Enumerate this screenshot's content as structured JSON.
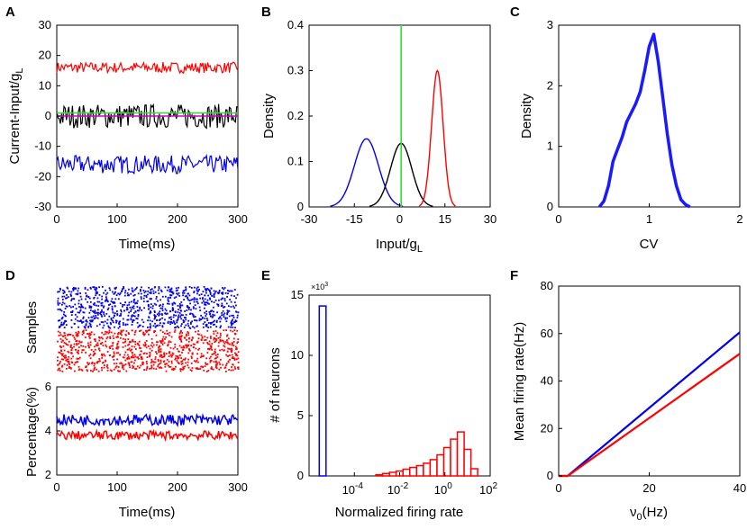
{
  "colors": {
    "red": "#ff0000",
    "blue": "#0000ee",
    "black": "#000000",
    "green": "#33dd33",
    "magenta": "#cc00cc"
  },
  "chart_data": [
    {
      "panel": "A",
      "type": "line",
      "xlabel": "Time(ms)",
      "ylabel_main": "Current-Input/g",
      "ylabel_sub": "L",
      "xlim": [
        0,
        300
      ],
      "ylim": [
        -30,
        30
      ],
      "xticks": [
        "0",
        "100",
        "200",
        "300"
      ],
      "yticks": [
        "-30",
        "-20",
        "-10",
        "0",
        "10",
        "20",
        "30"
      ],
      "series": [
        {
          "name": "red",
          "mean": 16,
          "amplitude": 1.8
        },
        {
          "name": "black",
          "mean": 0,
          "amplitude": 4
        },
        {
          "name": "blue",
          "mean": -16,
          "amplitude": 3
        },
        {
          "name": "green",
          "value": 1
        },
        {
          "name": "magenta",
          "value": 0
        }
      ]
    },
    {
      "panel": "B",
      "type": "line",
      "xlabel_main": "Input/g",
      "xlabel_sub": "L",
      "ylabel": "Density",
      "xlim": [
        -30,
        30
      ],
      "ylim": [
        0,
        0.4
      ],
      "xticks": [
        "-30",
        "-15",
        "0",
        "15",
        "30"
      ],
      "yticks": [
        "0",
        "0.1",
        "0.2",
        "0.3",
        "0.4"
      ],
      "series": [
        {
          "name": "blue",
          "peak_x": -11,
          "peak_y": 0.15
        },
        {
          "name": "black",
          "peak_x": 0.5,
          "peak_y": 0.14
        },
        {
          "name": "red",
          "peak_x": 12.5,
          "peak_y": 0.3
        },
        {
          "name": "green",
          "vline_x": 0.5
        }
      ]
    },
    {
      "panel": "C",
      "type": "line",
      "xlabel": "CV",
      "ylabel": "Density",
      "xlim": [
        0,
        2
      ],
      "ylim": [
        0,
        3
      ],
      "xticks": [
        "0",
        "1",
        "2"
      ],
      "yticks": [
        "0",
        "1",
        "2",
        "3"
      ],
      "x": [
        0.45,
        0.5,
        0.55,
        0.6,
        0.65,
        0.7,
        0.75,
        0.8,
        0.85,
        0.9,
        0.95,
        1.0,
        1.05,
        1.1,
        1.15,
        1.2,
        1.25,
        1.3,
        1.35,
        1.4,
        1.45
      ],
      "y": [
        0,
        0.1,
        0.35,
        0.75,
        0.95,
        1.15,
        1.4,
        1.55,
        1.7,
        1.9,
        2.25,
        2.65,
        2.85,
        2.4,
        1.8,
        1.2,
        0.7,
        0.35,
        0.12,
        0.04,
        0
      ]
    },
    {
      "panel": "D-top",
      "type": "scatter",
      "ylabel": "Samples",
      "series": [
        {
          "name": "blue"
        },
        {
          "name": "red"
        }
      ]
    },
    {
      "panel": "D",
      "type": "line",
      "xlabel": "Time(ms)",
      "ylabel": "Percentage(%)",
      "xlim": [
        0,
        300
      ],
      "ylim": [
        2,
        6
      ],
      "xticks": [
        "0",
        "100",
        "200",
        "300"
      ],
      "yticks": [
        "2",
        "4",
        "6"
      ],
      "series": [
        {
          "name": "blue",
          "mean": 4.5,
          "amplitude": 0.25
        },
        {
          "name": "red",
          "mean": 3.8,
          "amplitude": 0.2
        }
      ]
    },
    {
      "panel": "E",
      "type": "bar",
      "xlabel": "Normalized firing rate",
      "ylabel": "# of neurons",
      "ylim": [
        0,
        15
      ],
      "scale_label": "×10",
      "scale_exp": "3",
      "xticks": [
        {
          "base": "10",
          "exp": "-4"
        },
        {
          "base": "10",
          "exp": "-2"
        },
        {
          "base": "10",
          "exp": "0"
        },
        {
          "base": "10",
          "exp": "2"
        }
      ],
      "yticks": [
        "0",
        "5",
        "10",
        "15"
      ],
      "series": [
        {
          "name": "blue",
          "bins": [
            {
              "x": -5.4,
              "y": 14.1
            }
          ]
        },
        {
          "name": "red",
          "bins": [
            {
              "x": -2.9,
              "y": 0.1
            },
            {
              "x": -2.6,
              "y": 0.2
            },
            {
              "x": -2.3,
              "y": 0.3
            },
            {
              "x": -2.0,
              "y": 0.4
            },
            {
              "x": -1.7,
              "y": 0.55
            },
            {
              "x": -1.4,
              "y": 0.7
            },
            {
              "x": -1.1,
              "y": 0.85
            },
            {
              "x": -0.8,
              "y": 1.05
            },
            {
              "x": -0.5,
              "y": 1.35
            },
            {
              "x": -0.2,
              "y": 1.75
            },
            {
              "x": 0.1,
              "y": 2.35
            },
            {
              "x": 0.4,
              "y": 3.05
            },
            {
              "x": 0.7,
              "y": 3.65
            },
            {
              "x": 1.0,
              "y": 2.2
            },
            {
              "x": 1.3,
              "y": 0.6
            }
          ]
        }
      ]
    },
    {
      "panel": "F",
      "type": "line",
      "xlabel_main": "ν",
      "xlabel_sub": "0",
      "xlabel_rest": "(Hz)",
      "ylabel": "Mean firing rate(Hz)",
      "xlim": [
        0,
        40
      ],
      "ylim": [
        0,
        80
      ],
      "xticks": [
        "0",
        "20",
        "40"
      ],
      "yticks": [
        "0",
        "20",
        "40",
        "60",
        "80"
      ],
      "series": [
        {
          "name": "blue",
          "x": [
            0,
            2,
            40
          ],
          "y": [
            0,
            0,
            60.5
          ]
        },
        {
          "name": "red",
          "x": [
            0,
            2,
            40
          ],
          "y": [
            0,
            0,
            51.5
          ]
        }
      ]
    }
  ],
  "panel_labels": [
    "A",
    "B",
    "C",
    "D",
    "E",
    "F"
  ]
}
